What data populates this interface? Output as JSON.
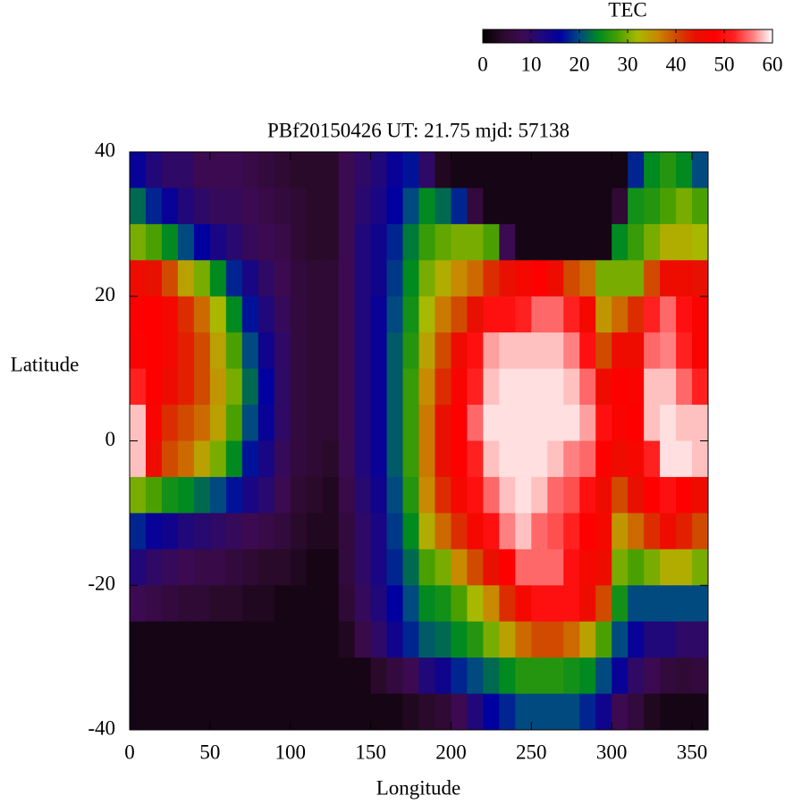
{
  "chart_data": {
    "type": "heatmap",
    "title": "PBf20150426  UT: 21.75  mjd: 57138",
    "x_label": "Longitude",
    "y_label": "Latitude",
    "xlim": [
      0,
      360
    ],
    "xticks": [
      0,
      50,
      100,
      150,
      200,
      250,
      300,
      350
    ],
    "ylim": [
      -40,
      40
    ],
    "yticks": [
      -40,
      -20,
      0,
      20,
      40
    ],
    "x": [
      5,
      15,
      25,
      35,
      45,
      55,
      65,
      75,
      85,
      95,
      105,
      115,
      125,
      135,
      145,
      155,
      165,
      175,
      185,
      195,
      205,
      215,
      225,
      235,
      245,
      255,
      265,
      275,
      285,
      295,
      305,
      315,
      325,
      335,
      345,
      355
    ],
    "y": [
      37.5,
      32.5,
      27.5,
      22.5,
      17.5,
      12.5,
      7.5,
      2.5,
      -2.5,
      -7.5,
      -12.5,
      -17.5,
      -22.5,
      -27.5,
      -32.5,
      -37.5
    ],
    "values": [
      [
        15,
        12,
        10,
        10,
        8,
        8,
        8,
        7,
        6,
        5,
        4,
        4,
        4,
        8,
        10,
        12,
        15,
        17,
        10,
        3,
        2,
        2,
        2,
        2,
        2,
        2,
        2,
        2,
        2,
        2,
        2,
        18,
        24,
        26,
        24,
        20
      ],
      [
        22,
        18,
        15,
        12,
        10,
        9,
        9,
        8,
        7,
        6,
        5,
        4,
        4,
        8,
        11,
        13,
        16,
        20,
        24,
        22,
        18,
        6,
        2,
        2,
        2,
        2,
        2,
        2,
        2,
        2,
        5,
        25,
        26,
        28,
        30,
        28
      ],
      [
        30,
        28,
        24,
        20,
        16,
        13,
        11,
        9,
        8,
        7,
        5,
        4,
        4,
        8,
        12,
        14,
        18,
        23,
        27,
        29,
        30,
        30,
        28,
        8,
        2,
        2,
        2,
        2,
        2,
        2,
        24,
        27,
        30,
        33,
        33,
        32
      ],
      [
        45,
        44,
        40,
        34,
        30,
        24,
        18,
        13,
        10,
        8,
        6,
        5,
        5,
        8,
        12,
        14,
        19,
        24,
        30,
        33,
        36,
        38,
        42,
        44,
        46,
        48,
        45,
        40,
        38,
        30,
        30,
        30,
        40,
        45,
        45,
        44
      ],
      [
        48,
        48,
        46,
        42,
        38,
        32,
        24,
        17,
        12,
        9,
        6,
        5,
        5,
        8,
        12,
        15,
        20,
        25,
        32,
        37,
        40,
        44,
        50,
        50,
        52,
        55,
        55,
        52,
        46,
        35,
        38,
        42,
        52,
        55,
        50,
        47
      ],
      [
        47,
        48,
        46,
        43,
        40,
        34,
        28,
        20,
        14,
        10,
        6,
        5,
        5,
        8,
        12,
        15,
        21,
        26,
        34,
        40,
        45,
        50,
        57,
        58,
        58,
        58,
        58,
        56,
        50,
        40,
        45,
        45,
        55,
        56,
        52,
        47
      ],
      [
        52,
        48,
        45,
        43,
        40,
        35,
        30,
        22,
        16,
        10,
        6,
        5,
        5,
        8,
        12,
        15,
        21,
        27,
        36,
        42,
        47,
        52,
        58,
        59,
        59,
        59,
        59,
        58,
        55,
        45,
        48,
        47,
        58,
        58,
        55,
        52
      ],
      [
        58,
        47,
        42,
        40,
        38,
        34,
        28,
        20,
        15,
        10,
        6,
        5,
        5,
        8,
        12,
        15,
        21,
        27,
        37,
        44,
        48,
        55,
        59,
        59,
        59,
        59,
        59,
        59,
        57,
        50,
        47,
        48,
        58,
        59,
        58,
        58
      ],
      [
        58,
        45,
        40,
        38,
        34,
        30,
        24,
        17,
        13,
        9,
        6,
        5,
        4,
        8,
        12,
        15,
        21,
        27,
        37,
        44,
        48,
        52,
        58,
        59,
        59,
        59,
        58,
        56,
        55,
        48,
        45,
        46,
        52,
        59,
        59,
        58
      ],
      [
        30,
        28,
        25,
        24,
        22,
        20,
        17,
        13,
        11,
        8,
        5,
        4,
        3,
        7,
        11,
        14,
        20,
        26,
        36,
        42,
        46,
        50,
        55,
        58,
        59,
        58,
        55,
        54,
        50,
        45,
        40,
        44,
        48,
        50,
        48,
        45
      ],
      [
        18,
        15,
        14,
        12,
        11,
        10,
        9,
        8,
        7,
        6,
        4,
        3,
        3,
        6,
        10,
        13,
        19,
        24,
        33,
        38,
        42,
        46,
        50,
        56,
        58,
        55,
        54,
        52,
        48,
        46,
        35,
        38,
        42,
        45,
        43,
        40
      ],
      [
        12,
        10,
        9,
        8,
        7,
        7,
        6,
        5,
        4,
        4,
        3,
        2,
        2,
        6,
        10,
        13,
        18,
        22,
        28,
        30,
        36,
        40,
        44,
        48,
        55,
        55,
        55,
        50,
        46,
        45,
        30,
        28,
        30,
        33,
        33,
        30
      ],
      [
        8,
        7,
        6,
        5,
        5,
        4,
        4,
        3,
        3,
        2,
        2,
        2,
        2,
        5,
        9,
        12,
        16,
        20,
        24,
        25,
        28,
        32,
        36,
        42,
        46,
        50,
        50,
        50,
        45,
        40,
        25,
        20,
        20,
        20,
        20,
        20
      ],
      [
        2,
        2,
        2,
        2,
        2,
        2,
        2,
        2,
        2,
        2,
        2,
        2,
        2,
        3,
        7,
        10,
        14,
        18,
        21,
        22,
        24,
        26,
        30,
        34,
        38,
        40,
        40,
        38,
        34,
        28,
        20,
        15,
        12,
        12,
        10,
        10
      ],
      [
        2,
        2,
        2,
        2,
        2,
        2,
        2,
        2,
        2,
        2,
        2,
        2,
        2,
        2,
        2,
        4,
        6,
        8,
        12,
        14,
        18,
        20,
        22,
        24,
        26,
        26,
        26,
        25,
        24,
        20,
        15,
        10,
        8,
        6,
        5,
        6
      ],
      [
        2,
        2,
        2,
        2,
        2,
        2,
        2,
        2,
        2,
        2,
        2,
        2,
        2,
        2,
        2,
        2,
        2,
        3,
        4,
        5,
        8,
        12,
        16,
        18,
        20,
        20,
        20,
        20,
        18,
        14,
        8,
        6,
        3,
        2,
        2,
        2
      ]
    ],
    "colorbar": {
      "label": "TEC",
      "lim": [
        0,
        60
      ],
      "ticks": [
        0,
        10,
        20,
        30,
        40,
        50,
        60
      ],
      "colors": [
        "#000000",
        "#2a0a2a",
        "#3c0a50",
        "#20087a",
        "#0000a0",
        "#004a80",
        "#008a20",
        "#4aa000",
        "#a8b800",
        "#c88a00",
        "#d04a00",
        "#e81000",
        "#ff0000",
        "#ff2020",
        "#ff8080",
        "#ffffff"
      ]
    }
  }
}
